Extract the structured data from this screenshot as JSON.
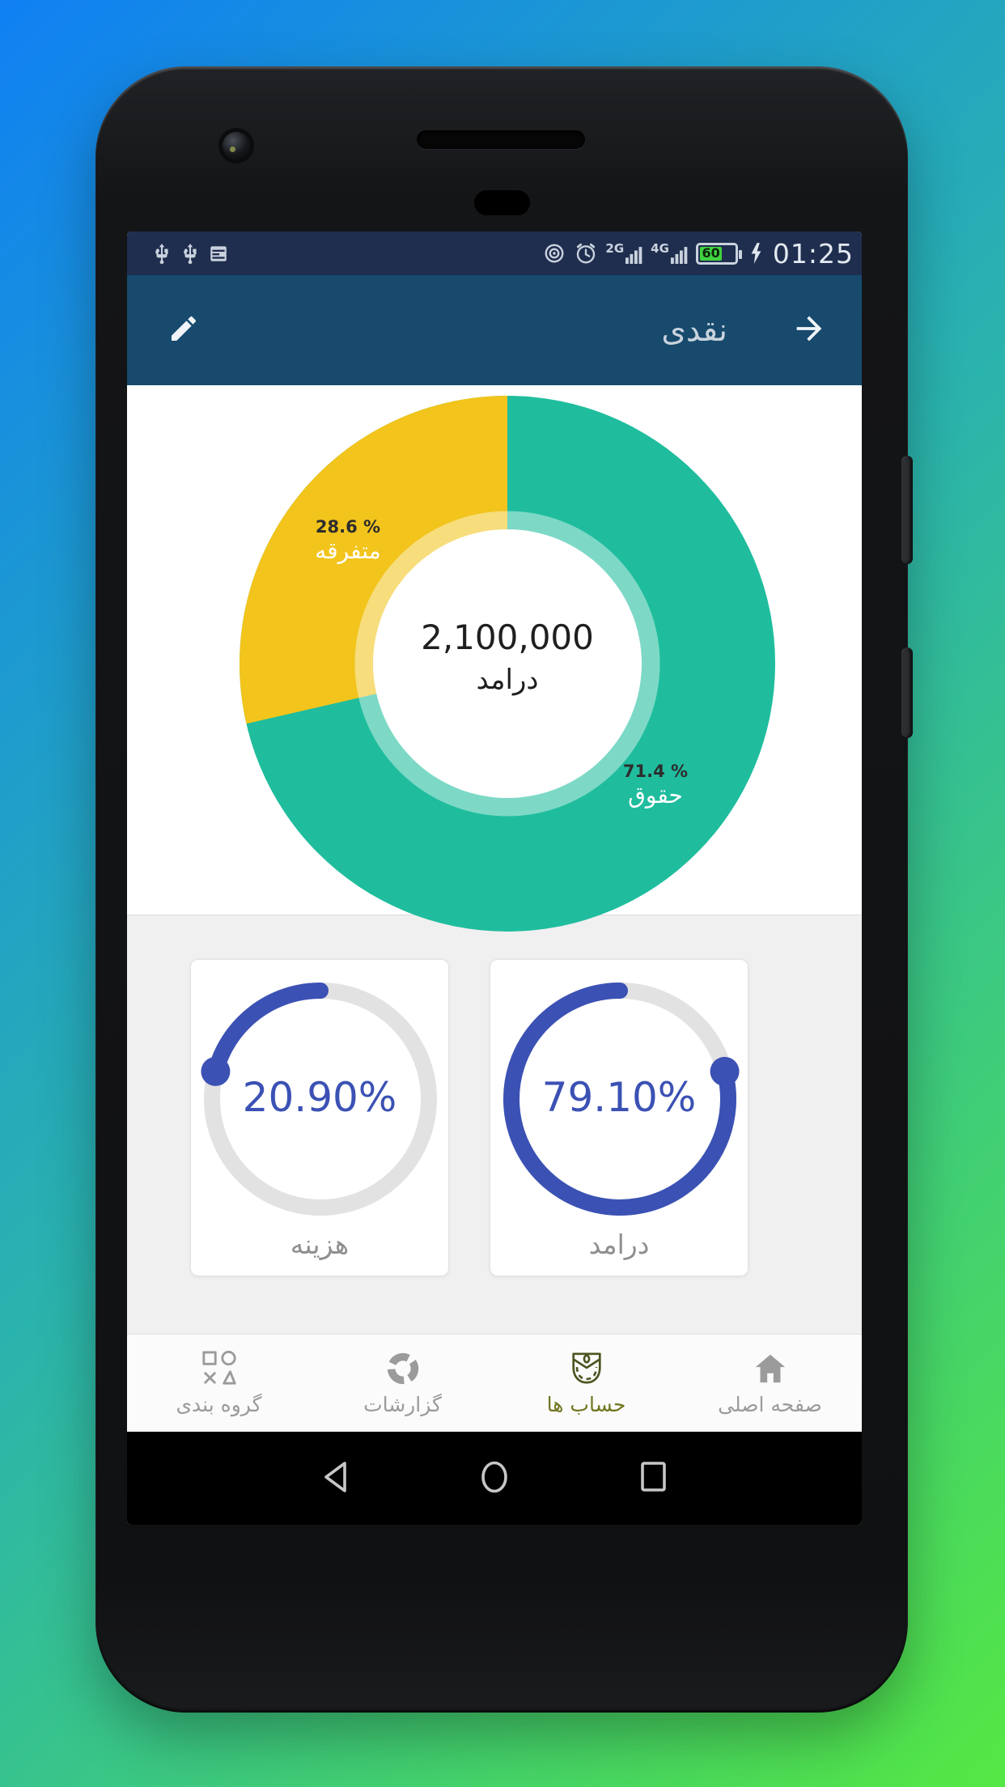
{
  "status_bar": {
    "time": "01:25",
    "battery_percent": "60",
    "network_badge_1": "2G",
    "network_badge_2": "4G",
    "battery_color": "#3fd33f",
    "bar_color": "#1f2e4e",
    "icons": [
      "usb-icon",
      "usb-icon",
      "agenda-icon",
      "hotspot-icon",
      "alarm-icon",
      "signal-bars-icon",
      "signal-bars-icon",
      "battery-icon",
      "charging-bolt-icon"
    ]
  },
  "header": {
    "title": "نقدی",
    "background": "#174a6d",
    "icons": [
      "pencil-icon",
      "arrow-forward-icon"
    ]
  },
  "chart_data": [
    {
      "type": "pie",
      "style": "donut",
      "center_value": "2,100,000",
      "center_label": "درامد",
      "segments": [
        {
          "label": "حقوق",
          "pct": 71.4,
          "pct_label": "71.4 %",
          "color": "#1fbd9e"
        },
        {
          "label": "متفرقه",
          "pct": 28.6,
          "pct_label": "28.6 %",
          "color": "#f2c41c"
        }
      ],
      "legend_position": "inside-slices",
      "grid": false
    },
    {
      "type": "gauge",
      "pct": 20.9,
      "value_label": "20.90%",
      "label": "هزینه",
      "color": "#3b51b4",
      "track_color": "#e2e2e2"
    },
    {
      "type": "gauge",
      "pct": 79.1,
      "value_label": "79.10%",
      "label": "درامد",
      "color": "#3b51b4",
      "track_color": "#e2e2e2"
    }
  ],
  "bottom_nav": {
    "active_color": "#4d5420",
    "inactive_color": "#9b9b9b",
    "items": [
      {
        "label": "گروه بندی",
        "icon": "shapes-icon",
        "active": false
      },
      {
        "label": "گزارشات",
        "icon": "pie-report-icon",
        "active": false
      },
      {
        "label": "حساب ها",
        "icon": "wallet-icon",
        "active": true
      },
      {
        "label": "صفحه اصلی",
        "icon": "home-icon",
        "active": false
      }
    ]
  },
  "android_nav": {
    "buttons": [
      "back",
      "home",
      "recents"
    ]
  }
}
